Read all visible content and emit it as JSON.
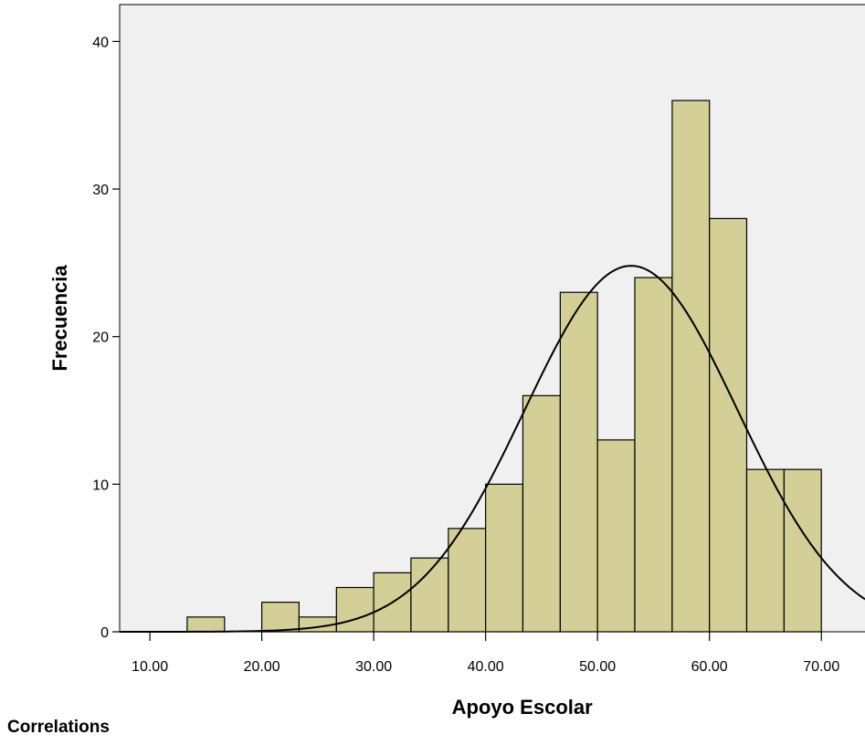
{
  "chart_data": {
    "type": "histogram",
    "xlabel": "Apoyo Escolar",
    "ylabel": "Frecuencia",
    "x_ticks": [
      "10.00",
      "20.00",
      "30.00",
      "40.00",
      "50.00",
      "60.00",
      "70.00"
    ],
    "x_tick_values": [
      10,
      20,
      30,
      40,
      50,
      60,
      70
    ],
    "y_ticks": [
      0,
      10,
      20,
      30,
      40
    ],
    "xlim": [
      7.3,
      73.9
    ],
    "ylim": [
      0,
      42.5
    ],
    "bin_width": 3.33,
    "bins": [
      {
        "start": 13.33,
        "end": 16.67,
        "count": 1
      },
      {
        "start": 16.67,
        "end": 20.0,
        "count": 0
      },
      {
        "start": 20.0,
        "end": 23.33,
        "count": 2
      },
      {
        "start": 23.33,
        "end": 26.67,
        "count": 1
      },
      {
        "start": 26.67,
        "end": 30.0,
        "count": 3
      },
      {
        "start": 30.0,
        "end": 33.33,
        "count": 4
      },
      {
        "start": 33.33,
        "end": 36.67,
        "count": 5
      },
      {
        "start": 36.67,
        "end": 40.0,
        "count": 7
      },
      {
        "start": 40.0,
        "end": 43.33,
        "count": 10
      },
      {
        "start": 43.33,
        "end": 46.67,
        "count": 16
      },
      {
        "start": 46.67,
        "end": 50.0,
        "count": 23
      },
      {
        "start": 50.0,
        "end": 53.33,
        "count": 13
      },
      {
        "start": 53.33,
        "end": 56.67,
        "count": 24
      },
      {
        "start": 56.67,
        "end": 60.0,
        "count": 36
      },
      {
        "start": 60.0,
        "end": 63.33,
        "count": 28
      },
      {
        "start": 63.33,
        "end": 66.67,
        "count": 11
      },
      {
        "start": 66.67,
        "end": 70.0,
        "count": 11
      }
    ],
    "normal_curve": {
      "mean": 53.0,
      "sd": 9.5,
      "peak": 24.8
    },
    "grid": false,
    "colors": {
      "bar_fill": "#d4cf96",
      "bar_stroke": "#000000",
      "plot_bg": "#f0f0f0",
      "curve": "#000000"
    }
  },
  "footer": {
    "section_title": "Correlations"
  }
}
